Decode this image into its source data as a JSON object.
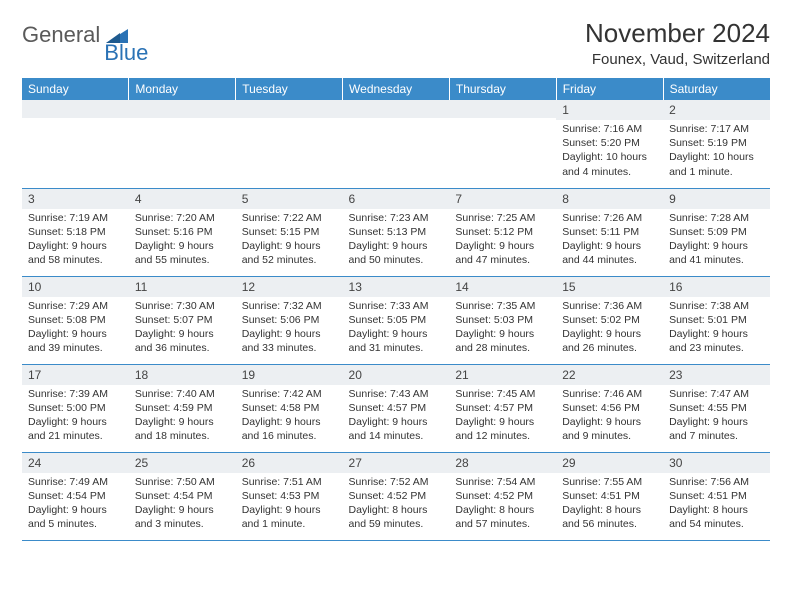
{
  "brand": {
    "part1": "General",
    "part2": "Blue"
  },
  "title": "November 2024",
  "location": "Founex, Vaud, Switzerland",
  "colors": {
    "header_bg": "#3b8bc9",
    "header_text": "#ffffff",
    "daynum_bg": "#eceff2",
    "row_border": "#3b8bc9",
    "body_text": "#333333",
    "brand_gray": "#5a5a5a",
    "brand_blue": "#2a72b5"
  },
  "typography": {
    "month_title_pt": 20,
    "location_pt": 11,
    "dayheader_pt": 9,
    "body_pt": 8
  },
  "day_headers": [
    "Sunday",
    "Monday",
    "Tuesday",
    "Wednesday",
    "Thursday",
    "Friday",
    "Saturday"
  ],
  "weeks": [
    [
      {
        "n": "",
        "sr": "",
        "ss": "",
        "dl": ""
      },
      {
        "n": "",
        "sr": "",
        "ss": "",
        "dl": ""
      },
      {
        "n": "",
        "sr": "",
        "ss": "",
        "dl": ""
      },
      {
        "n": "",
        "sr": "",
        "ss": "",
        "dl": ""
      },
      {
        "n": "",
        "sr": "",
        "ss": "",
        "dl": ""
      },
      {
        "n": "1",
        "sr": "Sunrise: 7:16 AM",
        "ss": "Sunset: 5:20 PM",
        "dl": "Daylight: 10 hours and 4 minutes."
      },
      {
        "n": "2",
        "sr": "Sunrise: 7:17 AM",
        "ss": "Sunset: 5:19 PM",
        "dl": "Daylight: 10 hours and 1 minute."
      }
    ],
    [
      {
        "n": "3",
        "sr": "Sunrise: 7:19 AM",
        "ss": "Sunset: 5:18 PM",
        "dl": "Daylight: 9 hours and 58 minutes."
      },
      {
        "n": "4",
        "sr": "Sunrise: 7:20 AM",
        "ss": "Sunset: 5:16 PM",
        "dl": "Daylight: 9 hours and 55 minutes."
      },
      {
        "n": "5",
        "sr": "Sunrise: 7:22 AM",
        "ss": "Sunset: 5:15 PM",
        "dl": "Daylight: 9 hours and 52 minutes."
      },
      {
        "n": "6",
        "sr": "Sunrise: 7:23 AM",
        "ss": "Sunset: 5:13 PM",
        "dl": "Daylight: 9 hours and 50 minutes."
      },
      {
        "n": "7",
        "sr": "Sunrise: 7:25 AM",
        "ss": "Sunset: 5:12 PM",
        "dl": "Daylight: 9 hours and 47 minutes."
      },
      {
        "n": "8",
        "sr": "Sunrise: 7:26 AM",
        "ss": "Sunset: 5:11 PM",
        "dl": "Daylight: 9 hours and 44 minutes."
      },
      {
        "n": "9",
        "sr": "Sunrise: 7:28 AM",
        "ss": "Sunset: 5:09 PM",
        "dl": "Daylight: 9 hours and 41 minutes."
      }
    ],
    [
      {
        "n": "10",
        "sr": "Sunrise: 7:29 AM",
        "ss": "Sunset: 5:08 PM",
        "dl": "Daylight: 9 hours and 39 minutes."
      },
      {
        "n": "11",
        "sr": "Sunrise: 7:30 AM",
        "ss": "Sunset: 5:07 PM",
        "dl": "Daylight: 9 hours and 36 minutes."
      },
      {
        "n": "12",
        "sr": "Sunrise: 7:32 AM",
        "ss": "Sunset: 5:06 PM",
        "dl": "Daylight: 9 hours and 33 minutes."
      },
      {
        "n": "13",
        "sr": "Sunrise: 7:33 AM",
        "ss": "Sunset: 5:05 PM",
        "dl": "Daylight: 9 hours and 31 minutes."
      },
      {
        "n": "14",
        "sr": "Sunrise: 7:35 AM",
        "ss": "Sunset: 5:03 PM",
        "dl": "Daylight: 9 hours and 28 minutes."
      },
      {
        "n": "15",
        "sr": "Sunrise: 7:36 AM",
        "ss": "Sunset: 5:02 PM",
        "dl": "Daylight: 9 hours and 26 minutes."
      },
      {
        "n": "16",
        "sr": "Sunrise: 7:38 AM",
        "ss": "Sunset: 5:01 PM",
        "dl": "Daylight: 9 hours and 23 minutes."
      }
    ],
    [
      {
        "n": "17",
        "sr": "Sunrise: 7:39 AM",
        "ss": "Sunset: 5:00 PM",
        "dl": "Daylight: 9 hours and 21 minutes."
      },
      {
        "n": "18",
        "sr": "Sunrise: 7:40 AM",
        "ss": "Sunset: 4:59 PM",
        "dl": "Daylight: 9 hours and 18 minutes."
      },
      {
        "n": "19",
        "sr": "Sunrise: 7:42 AM",
        "ss": "Sunset: 4:58 PM",
        "dl": "Daylight: 9 hours and 16 minutes."
      },
      {
        "n": "20",
        "sr": "Sunrise: 7:43 AM",
        "ss": "Sunset: 4:57 PM",
        "dl": "Daylight: 9 hours and 14 minutes."
      },
      {
        "n": "21",
        "sr": "Sunrise: 7:45 AM",
        "ss": "Sunset: 4:57 PM",
        "dl": "Daylight: 9 hours and 12 minutes."
      },
      {
        "n": "22",
        "sr": "Sunrise: 7:46 AM",
        "ss": "Sunset: 4:56 PM",
        "dl": "Daylight: 9 hours and 9 minutes."
      },
      {
        "n": "23",
        "sr": "Sunrise: 7:47 AM",
        "ss": "Sunset: 4:55 PM",
        "dl": "Daylight: 9 hours and 7 minutes."
      }
    ],
    [
      {
        "n": "24",
        "sr": "Sunrise: 7:49 AM",
        "ss": "Sunset: 4:54 PM",
        "dl": "Daylight: 9 hours and 5 minutes."
      },
      {
        "n": "25",
        "sr": "Sunrise: 7:50 AM",
        "ss": "Sunset: 4:54 PM",
        "dl": "Daylight: 9 hours and 3 minutes."
      },
      {
        "n": "26",
        "sr": "Sunrise: 7:51 AM",
        "ss": "Sunset: 4:53 PM",
        "dl": "Daylight: 9 hours and 1 minute."
      },
      {
        "n": "27",
        "sr": "Sunrise: 7:52 AM",
        "ss": "Sunset: 4:52 PM",
        "dl": "Daylight: 8 hours and 59 minutes."
      },
      {
        "n": "28",
        "sr": "Sunrise: 7:54 AM",
        "ss": "Sunset: 4:52 PM",
        "dl": "Daylight: 8 hours and 57 minutes."
      },
      {
        "n": "29",
        "sr": "Sunrise: 7:55 AM",
        "ss": "Sunset: 4:51 PM",
        "dl": "Daylight: 8 hours and 56 minutes."
      },
      {
        "n": "30",
        "sr": "Sunrise: 7:56 AM",
        "ss": "Sunset: 4:51 PM",
        "dl": "Daylight: 8 hours and 54 minutes."
      }
    ]
  ]
}
